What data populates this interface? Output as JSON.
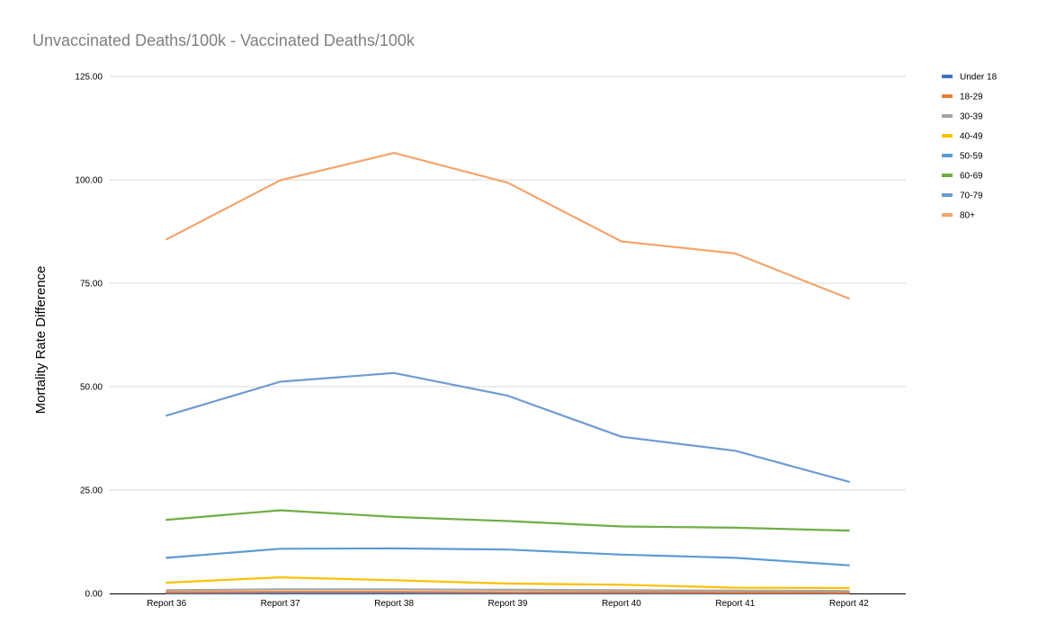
{
  "chart_data": {
    "type": "line",
    "title": "Unvaccinated Deaths/100k - Vaccinated Deaths/100k",
    "xlabel": "",
    "ylabel": "Mortality Rate Difference",
    "categories": [
      "Report 36",
      "Report 37",
      "Report 38",
      "Report 39",
      "Report 40",
      "Report 41",
      "Report 42"
    ],
    "ylim": [
      0,
      125
    ],
    "yticks": [
      0,
      25,
      50,
      75,
      100,
      125
    ],
    "ytick_labels": [
      "0.00",
      "25.00",
      "50.00",
      "75.00",
      "100.00",
      "125.00"
    ],
    "grid": true,
    "legend_position": "right",
    "series": [
      {
        "name": "Under 18",
        "color": "#4472c4",
        "values": [
          0.05,
          0.05,
          0.05,
          0.05,
          0.05,
          0.05,
          0.05
        ]
      },
      {
        "name": "18-29",
        "color": "#ed7d31",
        "values": [
          0.3,
          0.4,
          0.4,
          0.3,
          0.3,
          0.25,
          0.2
        ]
      },
      {
        "name": "30-39",
        "color": "#a5a5a5",
        "values": [
          0.8,
          1.0,
          1.0,
          0.9,
          0.8,
          0.7,
          0.6
        ]
      },
      {
        "name": "40-49",
        "color": "#ffc000",
        "values": [
          2.6,
          3.9,
          3.2,
          2.4,
          2.1,
          1.4,
          1.3
        ]
      },
      {
        "name": "50-59",
        "color": "#5b9bd5",
        "values": [
          8.6,
          10.8,
          10.9,
          10.6,
          9.4,
          8.6,
          6.8
        ]
      },
      {
        "name": "60-69",
        "color": "#70ad47",
        "values": [
          17.8,
          20.1,
          18.5,
          17.5,
          16.2,
          15.9,
          15.2
        ]
      },
      {
        "name": "70-79",
        "color": "#6e9bd2",
        "values": [
          43.0,
          51.2,
          53.3,
          47.8,
          37.9,
          34.5,
          27.0
        ]
      },
      {
        "name": "80+",
        "color": "#f4a46c",
        "values": [
          85.6,
          99.9,
          106.5,
          99.3,
          85.1,
          82.2,
          71.3
        ]
      }
    ]
  }
}
